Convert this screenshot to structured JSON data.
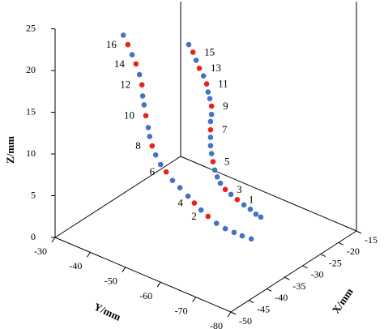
{
  "chart_data": {
    "type": "scatter3d",
    "xlabel": "X/mm",
    "ylabel": "Y/mm",
    "zlabel": "Z/mm",
    "xlim": [
      -50,
      -15
    ],
    "xticks": [
      -50,
      -45,
      -40,
      -35,
      -30,
      -25,
      -20,
      -15
    ],
    "ylim": [
      -80,
      -30
    ],
    "yticks": [
      -30,
      -40,
      -50,
      -60,
      -70,
      -80
    ],
    "zlim": [
      0,
      25
    ],
    "zticks": [
      0,
      5,
      10,
      15,
      20,
      25
    ],
    "color": "#4472c4",
    "highlight_color": "#e8221b",
    "series": [
      {
        "x": [
          -40,
          -40,
          -40,
          -40,
          -40,
          -40,
          -40,
          -40,
          -40,
          -40,
          -40,
          -40,
          -40,
          -40,
          -40,
          -40,
          -40,
          -40,
          -40,
          -40,
          -40,
          -40,
          -40,
          -40,
          -40,
          -40
        ],
        "y": [
          -75.6,
          -73.0,
          -70.7,
          -68.2,
          -65.7,
          -63.3,
          -61.3,
          -59.4,
          -57.6,
          -55.3,
          -53.2,
          -51.4,
          -49.8,
          -48.4,
          -47.4,
          -46.7,
          -46.3,
          -45.6,
          -45.1,
          -44.7,
          -44.5,
          -43.8,
          -42.8,
          -41.7,
          -40.5,
          -39.2
        ],
        "z": [
          5.2,
          5.1,
          5.1,
          5.1,
          5.3,
          5.7,
          6.1,
          6.6,
          7.1,
          7.7,
          8.2,
          8.9,
          9.5,
          10.4,
          11.3,
          12.3,
          13.3,
          14.6,
          15.8,
          16.8,
          18.1,
          19.2,
          20.3,
          21.2,
          22.2,
          23.1
        ],
        "labels": [
          null,
          null,
          null,
          null,
          null,
          "2",
          null,
          "4",
          null,
          null,
          null,
          "6",
          null,
          null,
          "8",
          null,
          null,
          "10",
          null,
          null,
          "12",
          null,
          "14",
          null,
          "16",
          null
        ]
      },
      {
        "x": [
          -25,
          -25,
          -25,
          -25,
          -25,
          -25,
          -25,
          -25,
          -25,
          -25,
          -25,
          -25,
          -25,
          -25,
          -25,
          -25,
          -25,
          -25,
          -25,
          -25,
          -25,
          -25,
          -25,
          -25,
          -25,
          -25
        ],
        "y": [
          -63.0,
          -61.6,
          -60.0,
          -58.2,
          -56.3,
          -54.5,
          -52.9,
          -51.5,
          -50.6,
          -49.9,
          -49.4,
          -49.0,
          -48.7,
          -48.7,
          -48.7,
          -48.7,
          -49.0,
          -49.0,
          -48.5,
          -48.0,
          -47.6,
          -46.7,
          -45.5,
          -44.6,
          -43.7,
          -42.5
        ],
        "z": [
          1.4,
          1.5,
          1.8,
          2.0,
          2.3,
          2.6,
          2.9,
          3.4,
          4.0,
          4.7,
          5.6,
          6.5,
          7.4,
          8.4,
          9.3,
          10.3,
          11.2,
          12.2,
          13.0,
          13.7,
          14.6,
          15.4,
          16.1,
          16.9,
          17.7,
          18.4
        ],
        "labels": [
          null,
          null,
          null,
          null,
          "1",
          null,
          "3",
          null,
          null,
          null,
          "5",
          null,
          null,
          null,
          "7",
          null,
          null,
          "9",
          null,
          null,
          "11",
          null,
          "13",
          null,
          "15",
          null
        ]
      }
    ]
  }
}
